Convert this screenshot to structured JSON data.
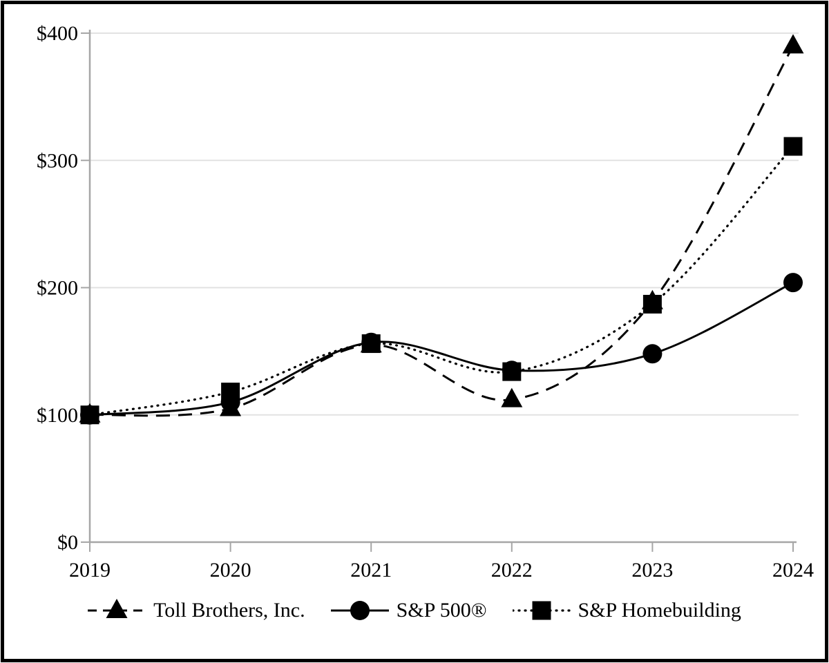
{
  "page": {
    "background_color": "#ffffff",
    "frame_color": "#000000"
  },
  "chart_data": {
    "type": "line",
    "title": "",
    "x": [
      "2019",
      "2020",
      "2021",
      "2022",
      "2023",
      "2024"
    ],
    "xlabel": "",
    "ylabel": "",
    "ylim": [
      0,
      400
    ],
    "y_ticks": [
      0,
      100,
      200,
      300,
      400
    ],
    "y_tick_labels": [
      "$0",
      "$100",
      "$200",
      "$300",
      "$400"
    ],
    "grid": "horizontal-only",
    "legend_position": "bottom",
    "axis_color": "#a6a6a6",
    "gridline_color": "#e2e2e2",
    "series": [
      {
        "name": "Toll Brothers, Inc.",
        "marker": "triangle",
        "line_style": "dashed",
        "color": "#000000",
        "values": [
          100,
          105,
          155,
          112,
          189,
          390
        ]
      },
      {
        "name": "S&P 500®",
        "marker": "circle",
        "line_style": "solid",
        "color": "#000000",
        "values": [
          100,
          110,
          157,
          135,
          148,
          204
        ]
      },
      {
        "name": "S&P Homebuilding",
        "marker": "square",
        "line_style": "dotted",
        "color": "#000000",
        "values": [
          100,
          118,
          156,
          134,
          187,
          311
        ]
      }
    ]
  }
}
